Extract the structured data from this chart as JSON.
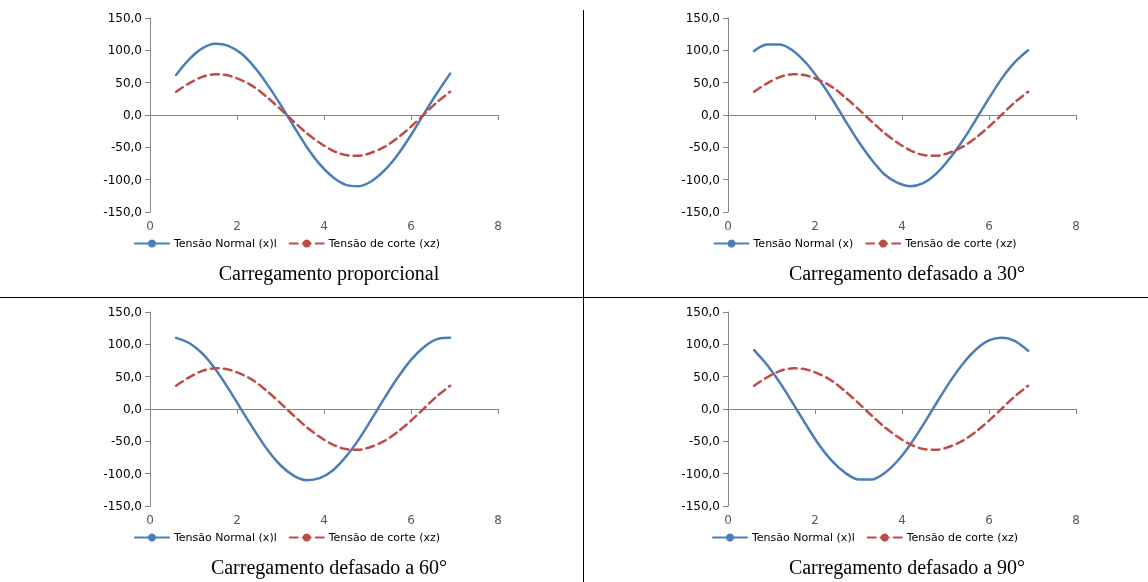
{
  "chart_data": [
    {
      "type": "line",
      "title": "Carregamento proporcional",
      "x": [
        0.6,
        0.9,
        1.2,
        1.5,
        1.8,
        2.1,
        2.4,
        2.7,
        3.0,
        3.3,
        3.6,
        3.9,
        4.2,
        4.5,
        4.8,
        5.1,
        5.4,
        5.7,
        6.0,
        6.3,
        6.6,
        6.9
      ],
      "xlim": [
        0,
        8
      ],
      "xticks": [
        0,
        2,
        4,
        6,
        8
      ],
      "ylim": [
        -150,
        150
      ],
      "yticks": [
        {
          "value": -150,
          "label": "-150,0"
        },
        {
          "value": -100,
          "label": "-100,0"
        },
        {
          "value": -50,
          "label": "-50,0"
        },
        {
          "value": 0,
          "label": "0,0"
        },
        {
          "value": 50,
          "label": "50,0"
        },
        {
          "value": 100,
          "label": "100,0"
        },
        {
          "value": 150,
          "label": "150,0"
        }
      ],
      "legend": "bottom",
      "marker": "none",
      "series": [
        {
          "name": "Tensão Normal (x)l",
          "color": "#4a7ebb",
          "line_style": "solid",
          "values": [
            62,
            86,
            103,
            110,
            107,
            95,
            74,
            47,
            16,
            -17,
            -49,
            -76,
            -96,
            -108,
            -110,
            -102,
            -85,
            -61,
            -31,
            2,
            34,
            64
          ]
        },
        {
          "name": "Tensão de corte (xz)",
          "color": "#be4b48",
          "line_style": "dashed",
          "values": [
            36,
            49,
            59,
            63,
            61,
            54,
            43,
            27,
            9,
            -10,
            -28,
            -43,
            -55,
            -62,
            -63,
            -58,
            -49,
            -35,
            -18,
            1,
            20,
            36
          ]
        }
      ]
    },
    {
      "type": "line",
      "title": "Carregamento defasado a 30°",
      "x": [
        0.6,
        0.9,
        1.2,
        1.5,
        1.8,
        2.1,
        2.4,
        2.7,
        3.0,
        3.3,
        3.6,
        3.9,
        4.2,
        4.5,
        4.8,
        5.1,
        5.4,
        5.7,
        6.0,
        6.3,
        6.6,
        6.9
      ],
      "xlim": [
        0,
        8
      ],
      "xticks": [
        0,
        2,
        4,
        6,
        8
      ],
      "ylim": [
        -150,
        150
      ],
      "yticks": [
        {
          "value": -150,
          "label": "-150,0"
        },
        {
          "value": -100,
          "label": "-100,0"
        },
        {
          "value": -50,
          "label": "-50,0"
        },
        {
          "value": 0,
          "label": "0,0"
        },
        {
          "value": 50,
          "label": "50,0"
        },
        {
          "value": 100,
          "label": "100,0"
        },
        {
          "value": 150,
          "label": "150,0"
        }
      ],
      "legend": "bottom",
      "marker": "none",
      "series": [
        {
          "name": "Tensão Normal (x)",
          "color": "#4a7ebb",
          "line_style": "solid",
          "values": [
            99,
            109,
            109,
            99,
            80,
            54,
            24,
            -9,
            -41,
            -69,
            -92,
            -105,
            -110,
            -105,
            -90,
            -67,
            -39,
            -7,
            26,
            57,
            82,
            100
          ]
        },
        {
          "name": "Tensão de corte (xz)",
          "color": "#be4b48",
          "line_style": "dashed",
          "values": [
            36,
            49,
            59,
            63,
            61,
            54,
            43,
            27,
            9,
            -10,
            -28,
            -43,
            -55,
            -62,
            -63,
            -58,
            -49,
            -35,
            -18,
            1,
            20,
            36
          ]
        }
      ]
    },
    {
      "type": "line",
      "title": "Carregamento defasado a 60°",
      "x": [
        0.6,
        0.9,
        1.2,
        1.5,
        1.8,
        2.1,
        2.4,
        2.7,
        3.0,
        3.3,
        3.6,
        3.9,
        4.2,
        4.5,
        4.8,
        5.1,
        5.4,
        5.7,
        6.0,
        6.3,
        6.6,
        6.9
      ],
      "xlim": [
        0,
        8
      ],
      "xticks": [
        0,
        2,
        4,
        6,
        8
      ],
      "ylim": [
        -150,
        150
      ],
      "yticks": [
        {
          "value": -150,
          "label": "-150,0"
        },
        {
          "value": -100,
          "label": "-100,0"
        },
        {
          "value": -50,
          "label": "-50,0"
        },
        {
          "value": 0,
          "label": "0,0"
        },
        {
          "value": 50,
          "label": "50,0"
        },
        {
          "value": 100,
          "label": "100,0"
        },
        {
          "value": 150,
          "label": "150,0"
        }
      ],
      "legend": "bottom",
      "marker": "none",
      "series": [
        {
          "name": "Tensão Normal (x)l",
          "color": "#4a7ebb",
          "line_style": "solid",
          "values": [
            110,
            102,
            86,
            62,
            32,
            -1,
            -33,
            -63,
            -87,
            -103,
            -110,
            -107,
            -95,
            -74,
            -47,
            -15,
            18,
            49,
            76,
            96,
            108,
            110
          ]
        },
        {
          "name": "Tensão de corte (xz)",
          "color": "#be4b48",
          "line_style": "dashed",
          "values": [
            36,
            49,
            59,
            63,
            61,
            54,
            43,
            27,
            9,
            -10,
            -28,
            -43,
            -55,
            -62,
            -63,
            -58,
            -49,
            -35,
            -18,
            1,
            20,
            36
          ]
        }
      ]
    },
    {
      "type": "line",
      "title": "Carregamento defasado a 90°",
      "x": [
        0.6,
        0.9,
        1.2,
        1.5,
        1.8,
        2.1,
        2.4,
        2.7,
        3.0,
        3.3,
        3.6,
        3.9,
        4.2,
        4.5,
        4.8,
        5.1,
        5.4,
        5.7,
        6.0,
        6.3,
        6.6,
        6.9
      ],
      "xlim": [
        0,
        8
      ],
      "xticks": [
        0,
        2,
        4,
        6,
        8
      ],
      "ylim": [
        -150,
        150
      ],
      "yticks": [
        {
          "value": -150,
          "label": "-150,0"
        },
        {
          "value": -100,
          "label": "-100,0"
        },
        {
          "value": -50,
          "label": "-50,0"
        },
        {
          "value": 0,
          "label": "0,0"
        },
        {
          "value": 50,
          "label": "50,0"
        },
        {
          "value": 100,
          "label": "100,0"
        },
        {
          "value": 150,
          "label": "150,0"
        }
      ],
      "legend": "bottom",
      "marker": "none",
      "series": [
        {
          "name": "Tensão Normal (x)l",
          "color": "#4a7ebb",
          "line_style": "solid",
          "values": [
            91,
            68,
            40,
            8,
            -25,
            -56,
            -81,
            -99,
            -109,
            -109,
            -99,
            -80,
            -54,
            -23,
            10,
            42,
            70,
            92,
            106,
            110,
            105,
            90
          ]
        },
        {
          "name": "Tensão de corte (xz)",
          "color": "#be4b48",
          "line_style": "dashed",
          "values": [
            36,
            49,
            59,
            63,
            61,
            54,
            43,
            27,
            9,
            -10,
            -28,
            -43,
            -55,
            -62,
            -63,
            -58,
            -49,
            -35,
            -18,
            1,
            20,
            36
          ]
        }
      ]
    }
  ]
}
